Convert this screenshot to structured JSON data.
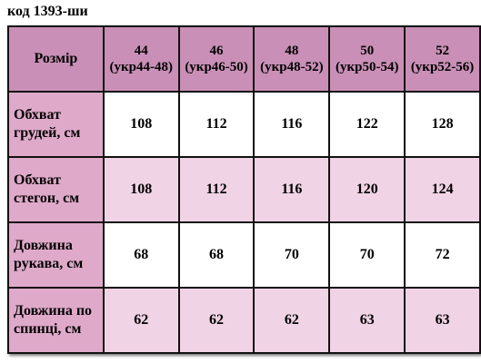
{
  "title": "код 1393-ши",
  "table": {
    "corner": "Розмір",
    "columns": [
      {
        "size": "44",
        "ua": "(укр44-48)"
      },
      {
        "size": "46",
        "ua": "(укр46-50)"
      },
      {
        "size": "48",
        "ua": "(укр48-52)"
      },
      {
        "size": "50",
        "ua": "(укр50-54)"
      },
      {
        "size": "52",
        "ua": "(укр52-56)"
      }
    ],
    "rows": [
      {
        "label": "Обхват грудей, см",
        "values": [
          108,
          112,
          116,
          122,
          128
        ]
      },
      {
        "label": "Обхват стегон, см",
        "values": [
          108,
          112,
          116,
          120,
          124
        ]
      },
      {
        "label": "Довжина рукава, см",
        "values": [
          68,
          68,
          70,
          70,
          72
        ]
      },
      {
        "label": "Довжина по спинці, см",
        "values": [
          62,
          62,
          62,
          63,
          63
        ]
      }
    ]
  }
}
